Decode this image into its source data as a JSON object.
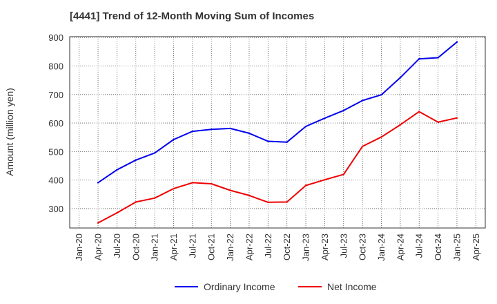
{
  "chart_data": {
    "type": "line",
    "title": "[4441]  Trend of 12-Month Moving Sum of Incomes",
    "xlabel": "",
    "ylabel": "Amount (million yen)",
    "ylim": [
      232,
      903
    ],
    "yticks": [
      300,
      400,
      500,
      600,
      700,
      800,
      900
    ],
    "categories": [
      "Jan-20",
      "Apr-20",
      "Jul-20",
      "Oct-20",
      "Jan-21",
      "Apr-21",
      "Jul-21",
      "Oct-21",
      "Jan-22",
      "Apr-22",
      "Jul-22",
      "Oct-22",
      "Jan-23",
      "Apr-23",
      "Jul-23",
      "Oct-23",
      "Jan-24",
      "Apr-24",
      "Jul-24",
      "Oct-24",
      "Jan-25",
      "Apr-25"
    ],
    "grid": true,
    "legend_position": "bottom-center",
    "series": [
      {
        "name": "Ordinary Income",
        "color": "#0000ee",
        "values": [
          null,
          391,
          436,
          470,
          495,
          542,
          571,
          578,
          581,
          564,
          536,
          533,
          588,
          617,
          644,
          679,
          699,
          759,
          825,
          829,
          884,
          null
        ]
      },
      {
        "name": "Net Income",
        "color": "#ee0000",
        "values": [
          null,
          250,
          285,
          323,
          337,
          370,
          391,
          387,
          364,
          346,
          322,
          323,
          381,
          401,
          420,
          518,
          551,
          594,
          640,
          603,
          618,
          null
        ]
      }
    ]
  }
}
